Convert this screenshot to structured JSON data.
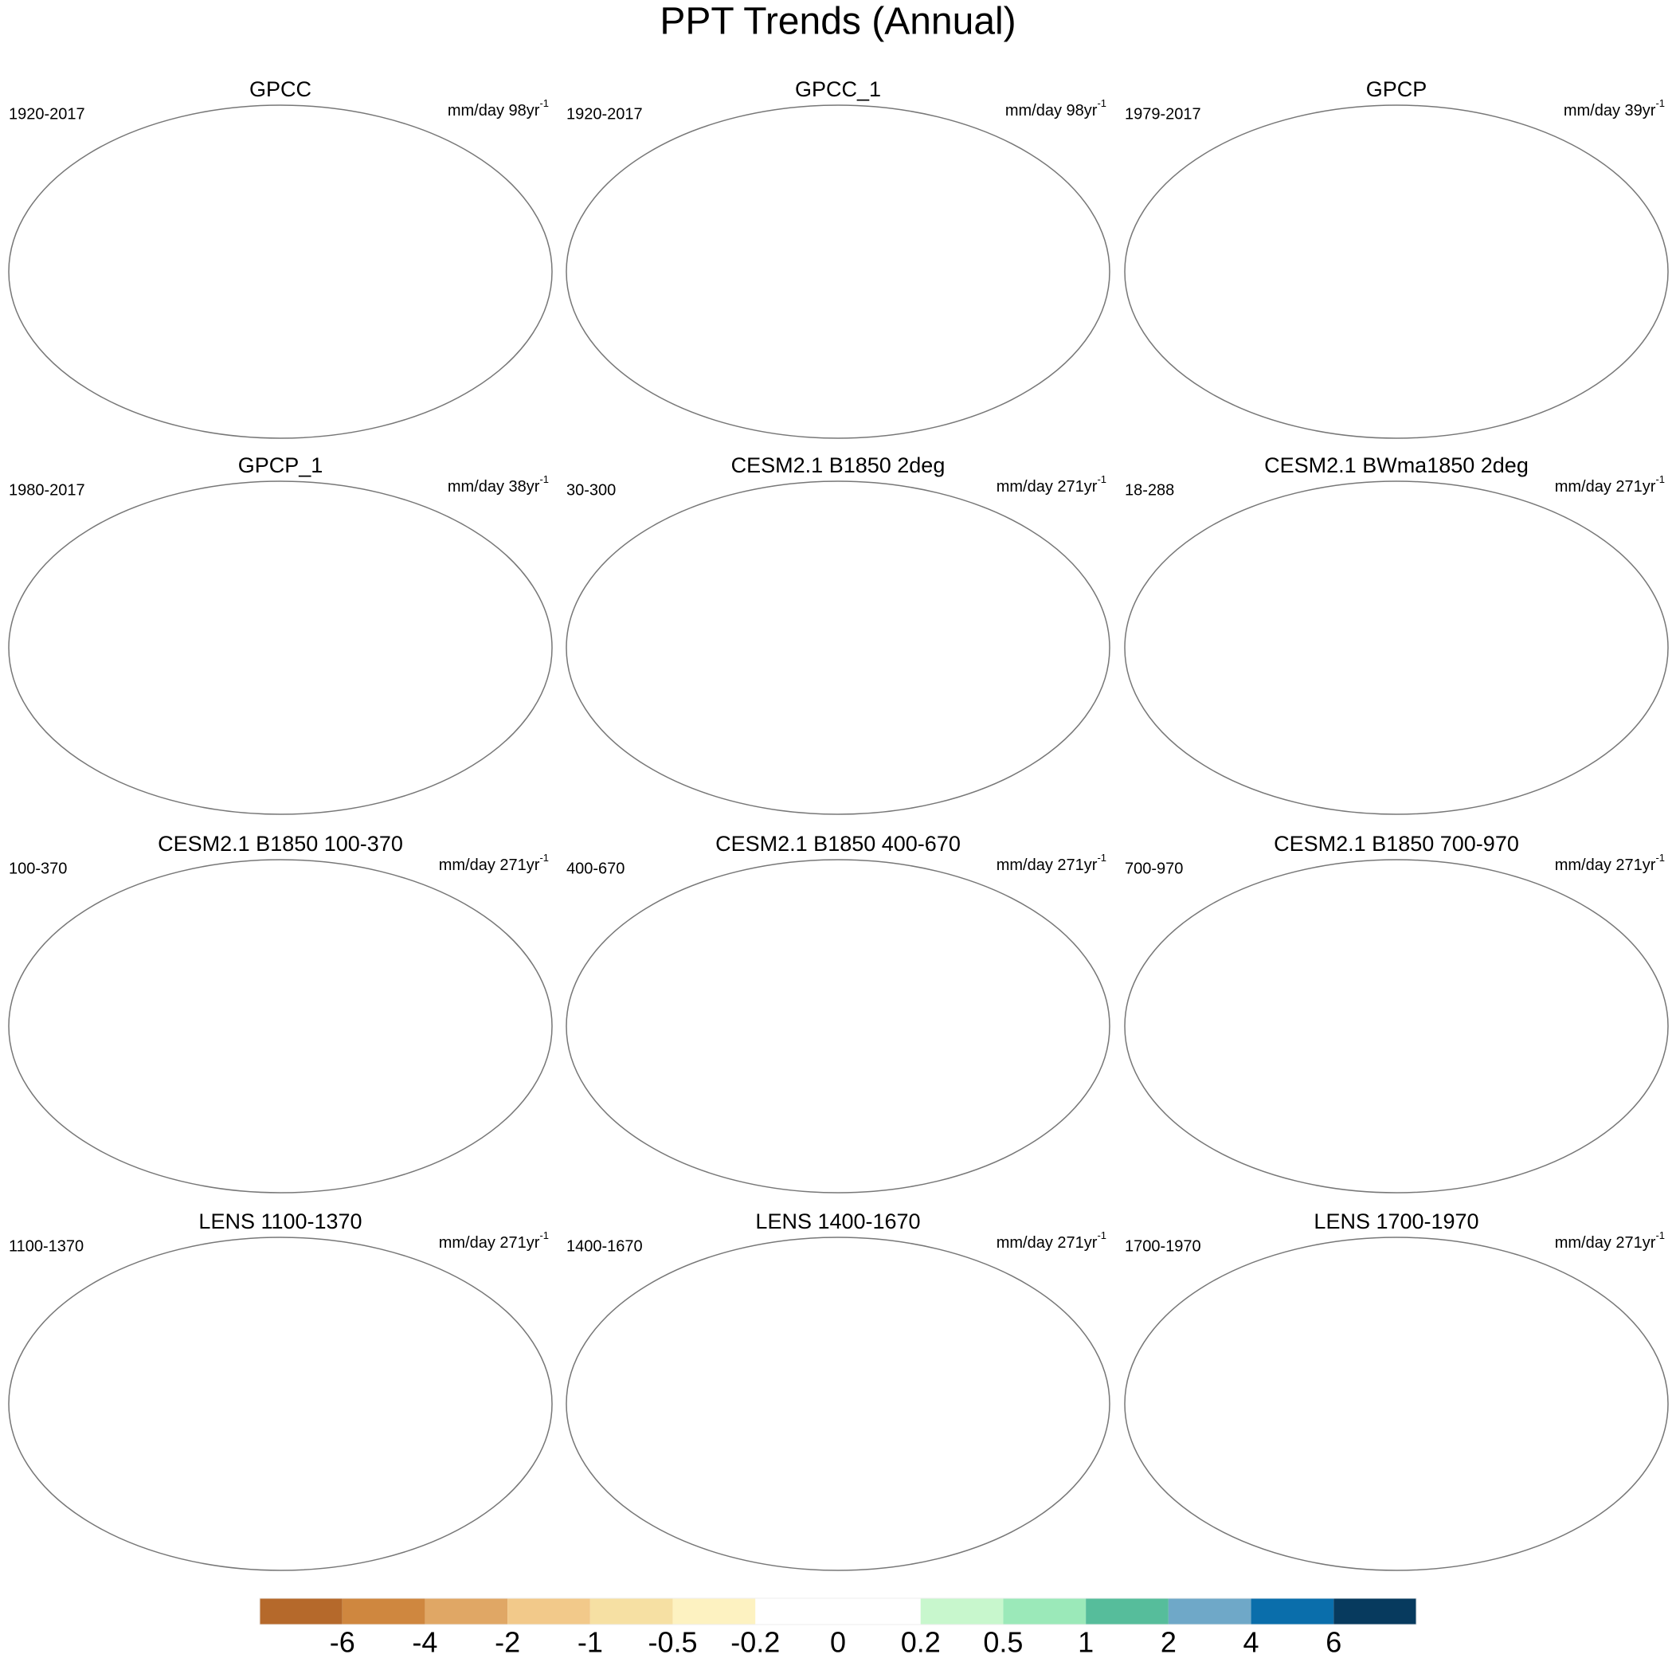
{
  "title": "PPT Trends (Annual)",
  "panels": [
    {
      "title": "GPCC",
      "left_label": "1920-2017",
      "right_label": "mm/day 98yr",
      "right_label_sup": "-1"
    },
    {
      "title": "GPCC_1",
      "left_label": "1920-2017",
      "right_label": "mm/day 98yr",
      "right_label_sup": "-1"
    },
    {
      "title": "GPCP",
      "left_label": "1979-2017",
      "right_label": "mm/day 39yr",
      "right_label_sup": "-1"
    },
    {
      "title": "GPCP_1",
      "left_label": "1980-2017",
      "right_label": "mm/day 38yr",
      "right_label_sup": "-1"
    },
    {
      "title": "CESM2.1 B1850 2deg",
      "left_label": "30-300",
      "right_label": "mm/day 271yr",
      "right_label_sup": "-1"
    },
    {
      "title": "CESM2.1 BWma1850 2deg",
      "left_label": "18-288",
      "right_label": "mm/day 271yr",
      "right_label_sup": "-1"
    },
    {
      "title": "CESM2.1 B1850 100-370",
      "left_label": "100-370",
      "right_label": "mm/day 271yr",
      "right_label_sup": "-1"
    },
    {
      "title": "CESM2.1 B1850 400-670",
      "left_label": "400-670",
      "right_label": "mm/day 271yr",
      "right_label_sup": "-1"
    },
    {
      "title": "CESM2.1 B1850 700-970",
      "left_label": "700-970",
      "right_label": "mm/day 271yr",
      "right_label_sup": "-1"
    },
    {
      "title": "LENS 1100-1370",
      "left_label": "1100-1370",
      "right_label": "mm/day 271yr",
      "right_label_sup": "-1"
    },
    {
      "title": "LENS 1400-1670",
      "left_label": "1400-1670",
      "right_label": "mm/day 271yr",
      "right_label_sup": "-1"
    },
    {
      "title": "LENS 1700-1970",
      "left_label": "1700-1970",
      "right_label": "mm/day 271yr",
      "right_label_sup": "-1"
    }
  ],
  "colorbar": {
    "colors": [
      "#b5692b",
      "#cf873f",
      "#e0a765",
      "#f2c98a",
      "#f6e0a3",
      "#fdf2c1",
      "#ffffff",
      "#ffffff",
      "#c8f7cd",
      "#9be9b9",
      "#56bd9b",
      "#6fa8c8",
      "#0a6eab",
      "#073a5e"
    ],
    "ticks": [
      -6,
      -4,
      -2,
      -1,
      -0.5,
      -0.2,
      0,
      0.2,
      0.5,
      1,
      2,
      4,
      6
    ]
  }
}
